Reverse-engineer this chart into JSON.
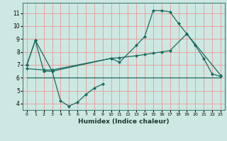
{
  "bg_color": "#cde8e2",
  "grid_color": "#e8a0a0",
  "line_color": "#1a6b5e",
  "xlabel": "Humidex (Indice chaleur)",
  "xlim": [
    -0.5,
    23.5
  ],
  "ylim": [
    3.5,
    11.8
  ],
  "yticks": [
    4,
    5,
    6,
    7,
    8,
    9,
    10,
    11
  ],
  "xticks": [
    0,
    1,
    2,
    3,
    4,
    5,
    6,
    7,
    8,
    9,
    10,
    11,
    12,
    13,
    14,
    15,
    16,
    17,
    18,
    19,
    20,
    21,
    22,
    23
  ],
  "series1_x": [
    0,
    1,
    2,
    3,
    4,
    5,
    6,
    7,
    8,
    9
  ],
  "series1_y": [
    7.0,
    8.9,
    6.5,
    6.5,
    4.2,
    3.8,
    4.1,
    4.7,
    5.2,
    5.5
  ],
  "series2_x": [
    0,
    1,
    3,
    10,
    11,
    13,
    14,
    15,
    16,
    17,
    18,
    19,
    20,
    21,
    22,
    23
  ],
  "series2_y": [
    7.0,
    8.9,
    6.5,
    7.5,
    7.2,
    8.5,
    9.2,
    11.2,
    11.2,
    11.1,
    10.2,
    9.4,
    8.5,
    7.5,
    6.3,
    6.1
  ],
  "series3_x": [
    0,
    23
  ],
  "series3_y": [
    6.0,
    6.0
  ],
  "series4_x": [
    0,
    2,
    3,
    10,
    11,
    13,
    14,
    15,
    16,
    17,
    19,
    23
  ],
  "series4_y": [
    6.7,
    6.6,
    6.6,
    7.5,
    7.55,
    7.7,
    7.8,
    7.9,
    8.0,
    8.1,
    9.4,
    6.2
  ]
}
